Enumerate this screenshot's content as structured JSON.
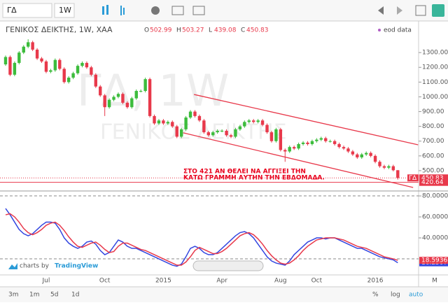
{
  "toolbar": {
    "symbol": "ΓΔ",
    "interval": "1W"
  },
  "legend": {
    "title": "ΓΕΝΙΚΟΣ ΔΕΙΚΤΗΣ, 1W, XAA",
    "ohlc": [
      {
        "key": "O",
        "value": "502.99"
      },
      {
        "key": "H",
        "value": "503.27"
      },
      {
        "key": "L",
        "value": "439.08"
      },
      {
        "key": "C",
        "value": "450.83"
      }
    ],
    "source": "eod data"
  },
  "watermark": {
    "symbol": "ΓΔ, 1W",
    "name": "ΓΕΝΙΚΟΣ ΔΕΙΚΤΗΣ"
  },
  "annotation_lines": [
    "ΣΤΟ 421 ΑΝ ΘΕΛΕΙ ΝΑ ΑΓΓΙΞΕΙ ΤΗΝ",
    "ΚΑΤΩ ΓΡΑΜΜΗ ΑΥΤΗΝ ΤΗΝ ΕΒΔΟΜΑΔΑ."
  ],
  "branding": {
    "prefix": "charts by",
    "brand": "TradingView"
  },
  "bottom_bar": {
    "ranges": [
      "3m",
      "1m",
      "5d",
      "1d"
    ],
    "scale_options": [
      "%",
      "log",
      "auto"
    ]
  },
  "chart_data": [
    {
      "type": "candlestick",
      "up_color": "#3cbc3c",
      "down_color": "#e8394b",
      "categories": [
        null,
        null,
        null,
        null,
        null,
        null,
        null,
        null,
        null,
        "Jul",
        null,
        null,
        null,
        null,
        null,
        null,
        null,
        null,
        null,
        null,
        null,
        null,
        "Oct",
        null,
        null,
        null,
        null,
        null,
        null,
        null,
        null,
        null,
        null,
        null,
        null,
        "2015",
        null,
        null,
        null,
        null,
        null,
        null,
        null,
        null,
        null,
        null,
        null,
        null,
        "Apr",
        null,
        null,
        null,
        null,
        null,
        null,
        null,
        null,
        null,
        null,
        null,
        null,
        "Aug",
        null,
        null,
        null,
        null,
        null,
        null,
        null,
        "Oct",
        null,
        null,
        null,
        null,
        null,
        null,
        null,
        null,
        null,
        null,
        null,
        null,
        "2016",
        null,
        null,
        null,
        null,
        null
      ],
      "x_axis_edge_label": "M",
      "open": [
        1220,
        1270,
        1150,
        1230,
        1300,
        1340,
        1370,
        1320,
        1260,
        1240,
        1170,
        1180,
        1250,
        1190,
        1100,
        1130,
        1160,
        1210,
        1230,
        1200,
        1150,
        1070,
        1010,
        930,
        980,
        1000,
        1020,
        960,
        930,
        990,
        1040,
        1040,
        1120,
        870,
        820,
        840,
        820,
        830,
        800,
        730,
        780,
        860,
        900,
        870,
        840,
        760,
        740,
        760,
        770,
        770,
        740,
        730,
        780,
        800,
        830,
        840,
        830,
        840,
        810,
        760,
        700,
        780,
        640,
        630,
        660,
        650,
        680,
        690,
        680,
        700,
        710,
        720,
        700,
        700,
        680,
        660,
        650,
        630,
        610,
        590,
        610,
        620,
        600,
        560,
        530,
        520,
        530,
        502.99
      ],
      "high": [
        1280,
        1280,
        1240,
        1310,
        1350,
        1390,
        1380,
        1330,
        1270,
        1250,
        1190,
        1260,
        1260,
        1200,
        1140,
        1170,
        1220,
        1240,
        1240,
        1210,
        1160,
        1080,
        1020,
        990,
        1010,
        1030,
        1030,
        970,
        1000,
        1050,
        1050,
        1130,
        1130,
        880,
        850,
        850,
        840,
        840,
        810,
        790,
        870,
        910,
        910,
        880,
        850,
        770,
        770,
        780,
        780,
        780,
        750,
        790,
        810,
        840,
        850,
        850,
        850,
        850,
        820,
        770,
        790,
        790,
        650,
        670,
        670,
        690,
        700,
        700,
        710,
        720,
        730,
        730,
        710,
        710,
        690,
        670,
        660,
        640,
        620,
        620,
        630,
        630,
        610,
        570,
        540,
        540,
        540,
        503.27
      ],
      "low": [
        1210,
        1140,
        1140,
        1220,
        1290,
        1330,
        1310,
        1250,
        1230,
        1160,
        1160,
        1170,
        1180,
        1090,
        1090,
        1120,
        1150,
        1200,
        1190,
        1140,
        1060,
        1000,
        870,
        920,
        970,
        990,
        950,
        920,
        920,
        980,
        1030,
        1030,
        860,
        810,
        810,
        810,
        810,
        790,
        720,
        720,
        770,
        850,
        860,
        830,
        750,
        730,
        730,
        750,
        760,
        730,
        720,
        720,
        770,
        790,
        820,
        820,
        820,
        800,
        750,
        690,
        690,
        630,
        560,
        620,
        640,
        640,
        670,
        670,
        670,
        690,
        700,
        690,
        690,
        670,
        650,
        640,
        620,
        600,
        580,
        580,
        600,
        590,
        550,
        520,
        510,
        510,
        495,
        439.08
      ],
      "close": [
        1270,
        1150,
        1230,
        1300,
        1340,
        1370,
        1320,
        1260,
        1240,
        1170,
        1180,
        1250,
        1190,
        1100,
        1130,
        1160,
        1210,
        1230,
        1200,
        1150,
        1070,
        1010,
        930,
        980,
        1000,
        1020,
        960,
        930,
        990,
        1040,
        1040,
        1120,
        870,
        820,
        840,
        820,
        830,
        800,
        730,
        780,
        860,
        900,
        870,
        840,
        760,
        740,
        760,
        770,
        770,
        740,
        730,
        780,
        800,
        830,
        840,
        830,
        840,
        810,
        760,
        700,
        780,
        640,
        630,
        660,
        650,
        680,
        690,
        680,
        700,
        710,
        720,
        700,
        700,
        680,
        660,
        650,
        630,
        610,
        590,
        610,
        620,
        600,
        560,
        530,
        520,
        530,
        502.99,
        450.83
      ],
      "ylim": [
        367,
        1514
      ],
      "yticks": [
        {
          "value": 500,
          "label": "500.00"
        },
        {
          "value": 600,
          "label": "600.00"
        },
        {
          "value": 700,
          "label": "700.00"
        },
        {
          "value": 800,
          "label": "800.00"
        },
        {
          "value": 900,
          "label": "900.00"
        },
        {
          "value": 1000,
          "label": "1000.00"
        },
        {
          "value": 1100,
          "label": "1100.00"
        },
        {
          "value": 1200,
          "label": "1200.00"
        },
        {
          "value": 1300,
          "label": "1300.00"
        }
      ],
      "price_lines": [
        {
          "name": "ΓΔ",
          "value": 450.83,
          "label": "450.83",
          "style": "dotted"
        },
        {
          "value": 420.64,
          "label": "420.64",
          "style": "solid"
        }
      ],
      "trend_color": "#e8394b",
      "trendlines": [
        {
          "x": [
            41.8,
            91.5
          ],
          "y": [
            1016,
            675
          ]
        },
        {
          "x": [
            39.4,
            90.4
          ],
          "y": [
            756,
            386
          ]
        }
      ]
    },
    {
      "type": "line",
      "ylim": [
        4.7,
        84.7
      ],
      "yticks": [
        {
          "value": 40,
          "label": "40.0000"
        },
        {
          "value": 60,
          "label": "60.0000"
        },
        {
          "value": 80,
          "label": "80.0000"
        }
      ],
      "bands": [
        80,
        20
      ],
      "series": [
        {
          "color": "#3346e0",
          "values": [
            68,
            62,
            55,
            48,
            44,
            42,
            44,
            48,
            52,
            55,
            55,
            54,
            48,
            40,
            35,
            32,
            30,
            32,
            36,
            37,
            34,
            28,
            24,
            26,
            32,
            38,
            36,
            32,
            30,
            30,
            28,
            26,
            24,
            22,
            20,
            18,
            16,
            14,
            13,
            15,
            22,
            30,
            32,
            30,
            26,
            24,
            24,
            26,
            30,
            34,
            38,
            42,
            45,
            46,
            44,
            40,
            34,
            28,
            22,
            18,
            16,
            15,
            14,
            18,
            24,
            28,
            32,
            36,
            38,
            40,
            40,
            39,
            40,
            40,
            38,
            36,
            34,
            32,
            30,
            30,
            28,
            26,
            24,
            22,
            21,
            20,
            19,
            16.2507
          ],
          "last_label": "16.2507"
        },
        {
          "color": "#e8394b",
          "values": [
            62,
            63,
            60,
            55,
            49,
            45,
            43,
            45,
            48,
            52,
            54,
            55,
            52,
            47,
            41,
            36,
            32,
            31,
            33,
            35,
            36,
            33,
            29,
            26,
            27,
            32,
            35,
            35,
            33,
            31,
            29,
            28,
            26,
            24,
            22,
            20,
            18,
            16,
            14,
            14,
            17,
            22,
            28,
            31,
            29,
            27,
            25,
            25,
            27,
            30,
            34,
            38,
            42,
            44,
            45,
            43,
            39,
            34,
            28,
            23,
            19,
            16,
            15,
            16,
            19,
            23,
            28,
            32,
            35,
            38,
            39,
            40,
            40,
            40,
            39,
            38,
            36,
            34,
            32,
            31,
            30,
            28,
            26,
            24,
            22,
            21,
            20,
            18.5936
          ],
          "last_label": "18.5936"
        }
      ]
    }
  ]
}
